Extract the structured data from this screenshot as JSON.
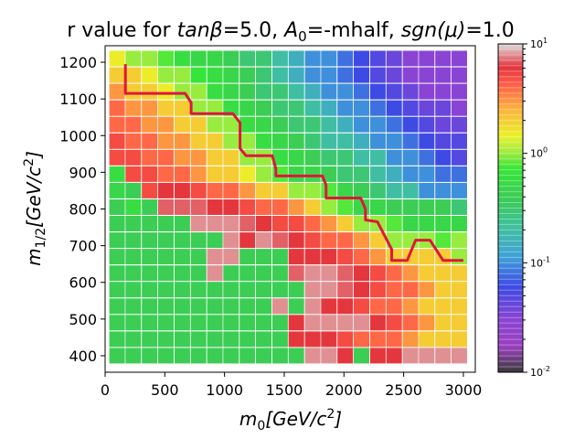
{
  "chart_data": {
    "type": "heatmap",
    "title_parts": [
      "r value for ",
      "tanβ",
      "=5.0, ",
      "A",
      "0",
      "=-mhalf, ",
      "sgn(μ)",
      "=1.0"
    ],
    "xlabel_parts": [
      "m",
      "0",
      "[GeV/c",
      "2",
      "]"
    ],
    "ylabel_parts": [
      "m",
      "1/2",
      "[GeV/c",
      "2",
      "]"
    ],
    "x_ticks": [
      0,
      500,
      1000,
      1500,
      2000,
      2500,
      3000
    ],
    "y_ticks": [
      400,
      500,
      600,
      700,
      800,
      900,
      1000,
      1100,
      1200
    ],
    "xlim": [
      0,
      3100
    ],
    "ylim": [
      355,
      1245
    ],
    "x": [
      100,
      236,
      373,
      509,
      646,
      782,
      919,
      1055,
      1192,
      1328,
      1465,
      1601,
      1738,
      1874,
      2011,
      2147,
      2284,
      2420,
      2557,
      2693,
      2830,
      2966
    ],
    "y": [
      400,
      445,
      490,
      535,
      580,
      625,
      670,
      715,
      760,
      805,
      850,
      895,
      940,
      985,
      1030,
      1075,
      1120,
      1165,
      1210
    ],
    "r_values": [
      [
        0.4,
        0.4,
        0.4,
        0.4,
        0.4,
        0.4,
        0.4,
        0.4,
        0.4,
        0.4,
        0.4,
        0.4,
        8,
        8,
        6,
        0.4,
        6,
        6,
        8,
        8,
        8,
        8
      ],
      [
        0.4,
        0.4,
        0.4,
        0.4,
        0.4,
        0.4,
        0.4,
        0.4,
        0.4,
        0.4,
        0.4,
        6,
        6,
        6,
        5,
        4,
        4,
        4,
        3,
        2,
        2,
        2
      ],
      [
        0.4,
        0.4,
        0.4,
        0.4,
        0.4,
        0.4,
        0.4,
        0.4,
        0.4,
        0.4,
        0.4,
        6,
        8,
        8,
        8,
        8,
        6,
        5,
        4,
        3,
        2,
        2
      ],
      [
        0.4,
        0.4,
        0.4,
        0.4,
        0.4,
        0.4,
        0.4,
        0.4,
        0.4,
        0.4,
        8,
        0.4,
        8,
        6,
        6,
        5,
        4,
        4,
        3,
        2,
        2,
        2
      ],
      [
        0.4,
        0.4,
        0.4,
        0.4,
        0.4,
        0.4,
        0.4,
        0.4,
        0.4,
        0.4,
        0.4,
        0.4,
        8,
        8,
        7,
        6,
        5,
        4,
        4,
        3,
        2,
        2
      ],
      [
        0.4,
        0.4,
        0.4,
        0.4,
        0.4,
        0.4,
        8,
        0.4,
        0.4,
        0.4,
        0.4,
        7,
        8,
        8,
        7,
        6,
        5,
        4,
        3,
        2,
        2,
        2
      ],
      [
        0.4,
        0.4,
        0.4,
        0.4,
        0.4,
        0.4,
        8,
        8,
        0.4,
        0.4,
        0.4,
        6,
        6,
        6,
        5,
        4,
        3,
        2,
        2,
        2,
        2,
        1
      ],
      [
        0.4,
        0.4,
        0.4,
        0.4,
        0.4,
        0.4,
        0.4,
        8,
        6,
        8,
        7,
        6,
        5,
        4,
        4,
        3,
        2,
        1,
        1,
        1,
        0.8,
        1
      ],
      [
        0.4,
        0.4,
        0.4,
        0.4,
        0.4,
        8,
        8,
        8,
        7,
        6,
        5,
        5,
        4,
        3,
        2,
        1,
        1,
        0.8,
        0.5,
        0.5,
        0.5,
        0.5
      ],
      [
        0.4,
        0.6,
        0.4,
        7,
        7,
        7,
        6,
        6,
        5,
        4,
        4,
        3,
        2,
        1,
        0.8,
        0.5,
        0.5,
        0.4,
        0.4,
        0.4,
        0.4,
        0.3
      ],
      [
        0.5,
        0.4,
        5,
        6,
        6,
        5,
        4,
        4,
        3,
        2,
        2,
        1,
        1,
        0.8,
        0.5,
        0.4,
        0.3,
        0.2,
        0.2,
        0.1,
        0.1,
        0.1
      ],
      [
        0.6,
        5,
        5,
        4,
        4,
        3,
        2,
        2,
        1.5,
        1,
        0.8,
        0.5,
        0.5,
        0.4,
        0.3,
        0.3,
        0.2,
        0.15,
        0.1,
        0.1,
        0.08,
        0.08
      ],
      [
        5,
        5,
        4,
        4,
        3,
        3,
        2,
        2,
        1,
        1,
        0.6,
        0.5,
        0.4,
        0.3,
        0.3,
        0.2,
        0.2,
        0.1,
        0.1,
        0.08,
        0.06,
        0.05
      ],
      [
        5,
        4,
        4,
        3,
        3,
        2,
        2,
        1,
        1,
        0.6,
        0.5,
        0.4,
        0.3,
        0.2,
        0.2,
        0.15,
        0.1,
        0.1,
        0.08,
        0.06,
        0.05,
        0.05
      ],
      [
        4,
        4,
        3,
        3,
        2,
        2,
        1,
        1,
        0.6,
        0.5,
        0.4,
        0.3,
        0.3,
        0.2,
        0.15,
        0.1,
        0.1,
        0.08,
        0.06,
        0.05,
        0.04,
        0.04
      ],
      [
        4,
        3,
        3,
        2,
        2,
        1,
        1,
        0.6,
        0.5,
        0.4,
        0.3,
        0.3,
        0.2,
        0.15,
        0.1,
        0.1,
        0.08,
        0.06,
        0.05,
        0.04,
        0.04,
        0.03
      ],
      [
        3,
        2,
        2,
        1.5,
        1,
        1,
        0.6,
        0.5,
        0.4,
        0.3,
        0.3,
        0.2,
        0.15,
        0.1,
        0.1,
        0.08,
        0.06,
        0.05,
        0.04,
        0.03,
        0.03,
        0.03
      ],
      [
        2,
        2,
        1.5,
        1,
        1,
        0.7,
        0.6,
        0.5,
        0.4,
        0.3,
        0.2,
        0.15,
        0.1,
        0.1,
        0.08,
        0.06,
        0.05,
        0.04,
        0.03,
        0.03,
        0.03,
        0.03
      ],
      [
        1.5,
        1,
        1,
        0.8,
        0.6,
        0.5,
        0.5,
        0.4,
        0.3,
        0.3,
        0.2,
        0.15,
        0.1,
        0.1,
        0.08,
        0.06,
        0.05,
        0.04,
        0.03,
        0.03,
        0.03,
        0.03
      ]
    ],
    "exclusion_contour": {
      "name": "r = 1",
      "color": "#e0163c",
      "x": [
        170,
        170,
        670,
        720,
        720,
        1070,
        1130,
        1130,
        1180,
        1180,
        1400,
        1430,
        1430,
        1820,
        1850,
        1850,
        2140,
        2180,
        2180,
        2280,
        2400,
        2400,
        2530,
        2600,
        2720,
        2830,
        3000
      ],
      "y": [
        1195,
        1115,
        1115,
        1090,
        1060,
        1060,
        1035,
        965,
        945,
        945,
        945,
        910,
        890,
        890,
        865,
        830,
        830,
        800,
        770,
        765,
        690,
        660,
        660,
        715,
        715,
        660,
        660
      ]
    },
    "colorbar": {
      "scale": "log",
      "min": 0.01,
      "max": 10,
      "tick_labels": [
        "10^1",
        "10^0",
        "10^-1",
        "10^-2"
      ],
      "tick_values": [
        10,
        1,
        0.1,
        0.01
      ],
      "color_stops": [
        {
          "t": 0.0,
          "color": "#3a3a3a"
        },
        {
          "t": 0.08,
          "color": "#9a40c0"
        },
        {
          "t": 0.16,
          "color": "#8a44d4"
        },
        {
          "t": 0.26,
          "color": "#3e4ae4"
        },
        {
          "t": 0.35,
          "color": "#3fa0d8"
        },
        {
          "t": 0.44,
          "color": "#3fc0a0"
        },
        {
          "t": 0.53,
          "color": "#3ccc55"
        },
        {
          "t": 0.62,
          "color": "#36e638"
        },
        {
          "t": 0.67,
          "color": "#9fec40"
        },
        {
          "t": 0.72,
          "color": "#ebf028"
        },
        {
          "t": 0.8,
          "color": "#fcb33c"
        },
        {
          "t": 0.88,
          "color": "#ff5a48"
        },
        {
          "t": 0.93,
          "color": "#e2343c"
        },
        {
          "t": 1.0,
          "color": "#dedede"
        }
      ]
    },
    "grid": false,
    "legend": "none"
  }
}
